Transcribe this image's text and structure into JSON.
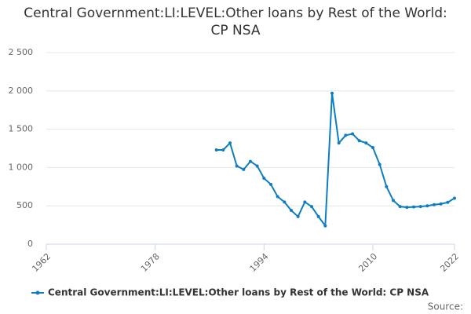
{
  "chart_data": {
    "type": "line",
    "title": "Central Government:LI:LEVEL:Other loans by Rest of the World: CP NSA",
    "x": [
      1987,
      1988,
      1989,
      1990,
      1991,
      1992,
      1993,
      1994,
      1995,
      1996,
      1997,
      1998,
      1999,
      2000,
      2001,
      2002,
      2003,
      2004,
      2005,
      2006,
      2007,
      2008,
      2009,
      2010,
      2011,
      2012,
      2013,
      2014,
      2015,
      2016,
      2017,
      2018,
      2019,
      2020,
      2021,
      2022
    ],
    "series": [
      {
        "name": "Central Government:LI:LEVEL:Other loans by Rest of the World: CP NSA",
        "color": "#0f7dc2",
        "values": [
          1230,
          1230,
          1320,
          1020,
          975,
          1080,
          1020,
          860,
          780,
          620,
          550,
          440,
          360,
          550,
          490,
          360,
          240,
          1970,
          1320,
          1420,
          1440,
          1350,
          1320,
          1260,
          1040,
          750,
          570,
          490,
          480,
          485,
          490,
          500,
          515,
          525,
          545,
          600
        ]
      }
    ],
    "xlim": [
      1962,
      2022
    ],
    "xticks": [
      1962,
      1978,
      1994,
      2010,
      2022
    ],
    "ylim": [
      0,
      2500
    ],
    "yticks": [
      0,
      500,
      {
        "value": 1000,
        "label": "1 000"
      },
      {
        "value": 1500,
        "label": "1 500"
      },
      {
        "value": 2000,
        "label": "2 000"
      },
      {
        "value": 2500,
        "label": "2 500"
      }
    ],
    "grid": true,
    "legend": "bottom",
    "source": "Source:"
  }
}
